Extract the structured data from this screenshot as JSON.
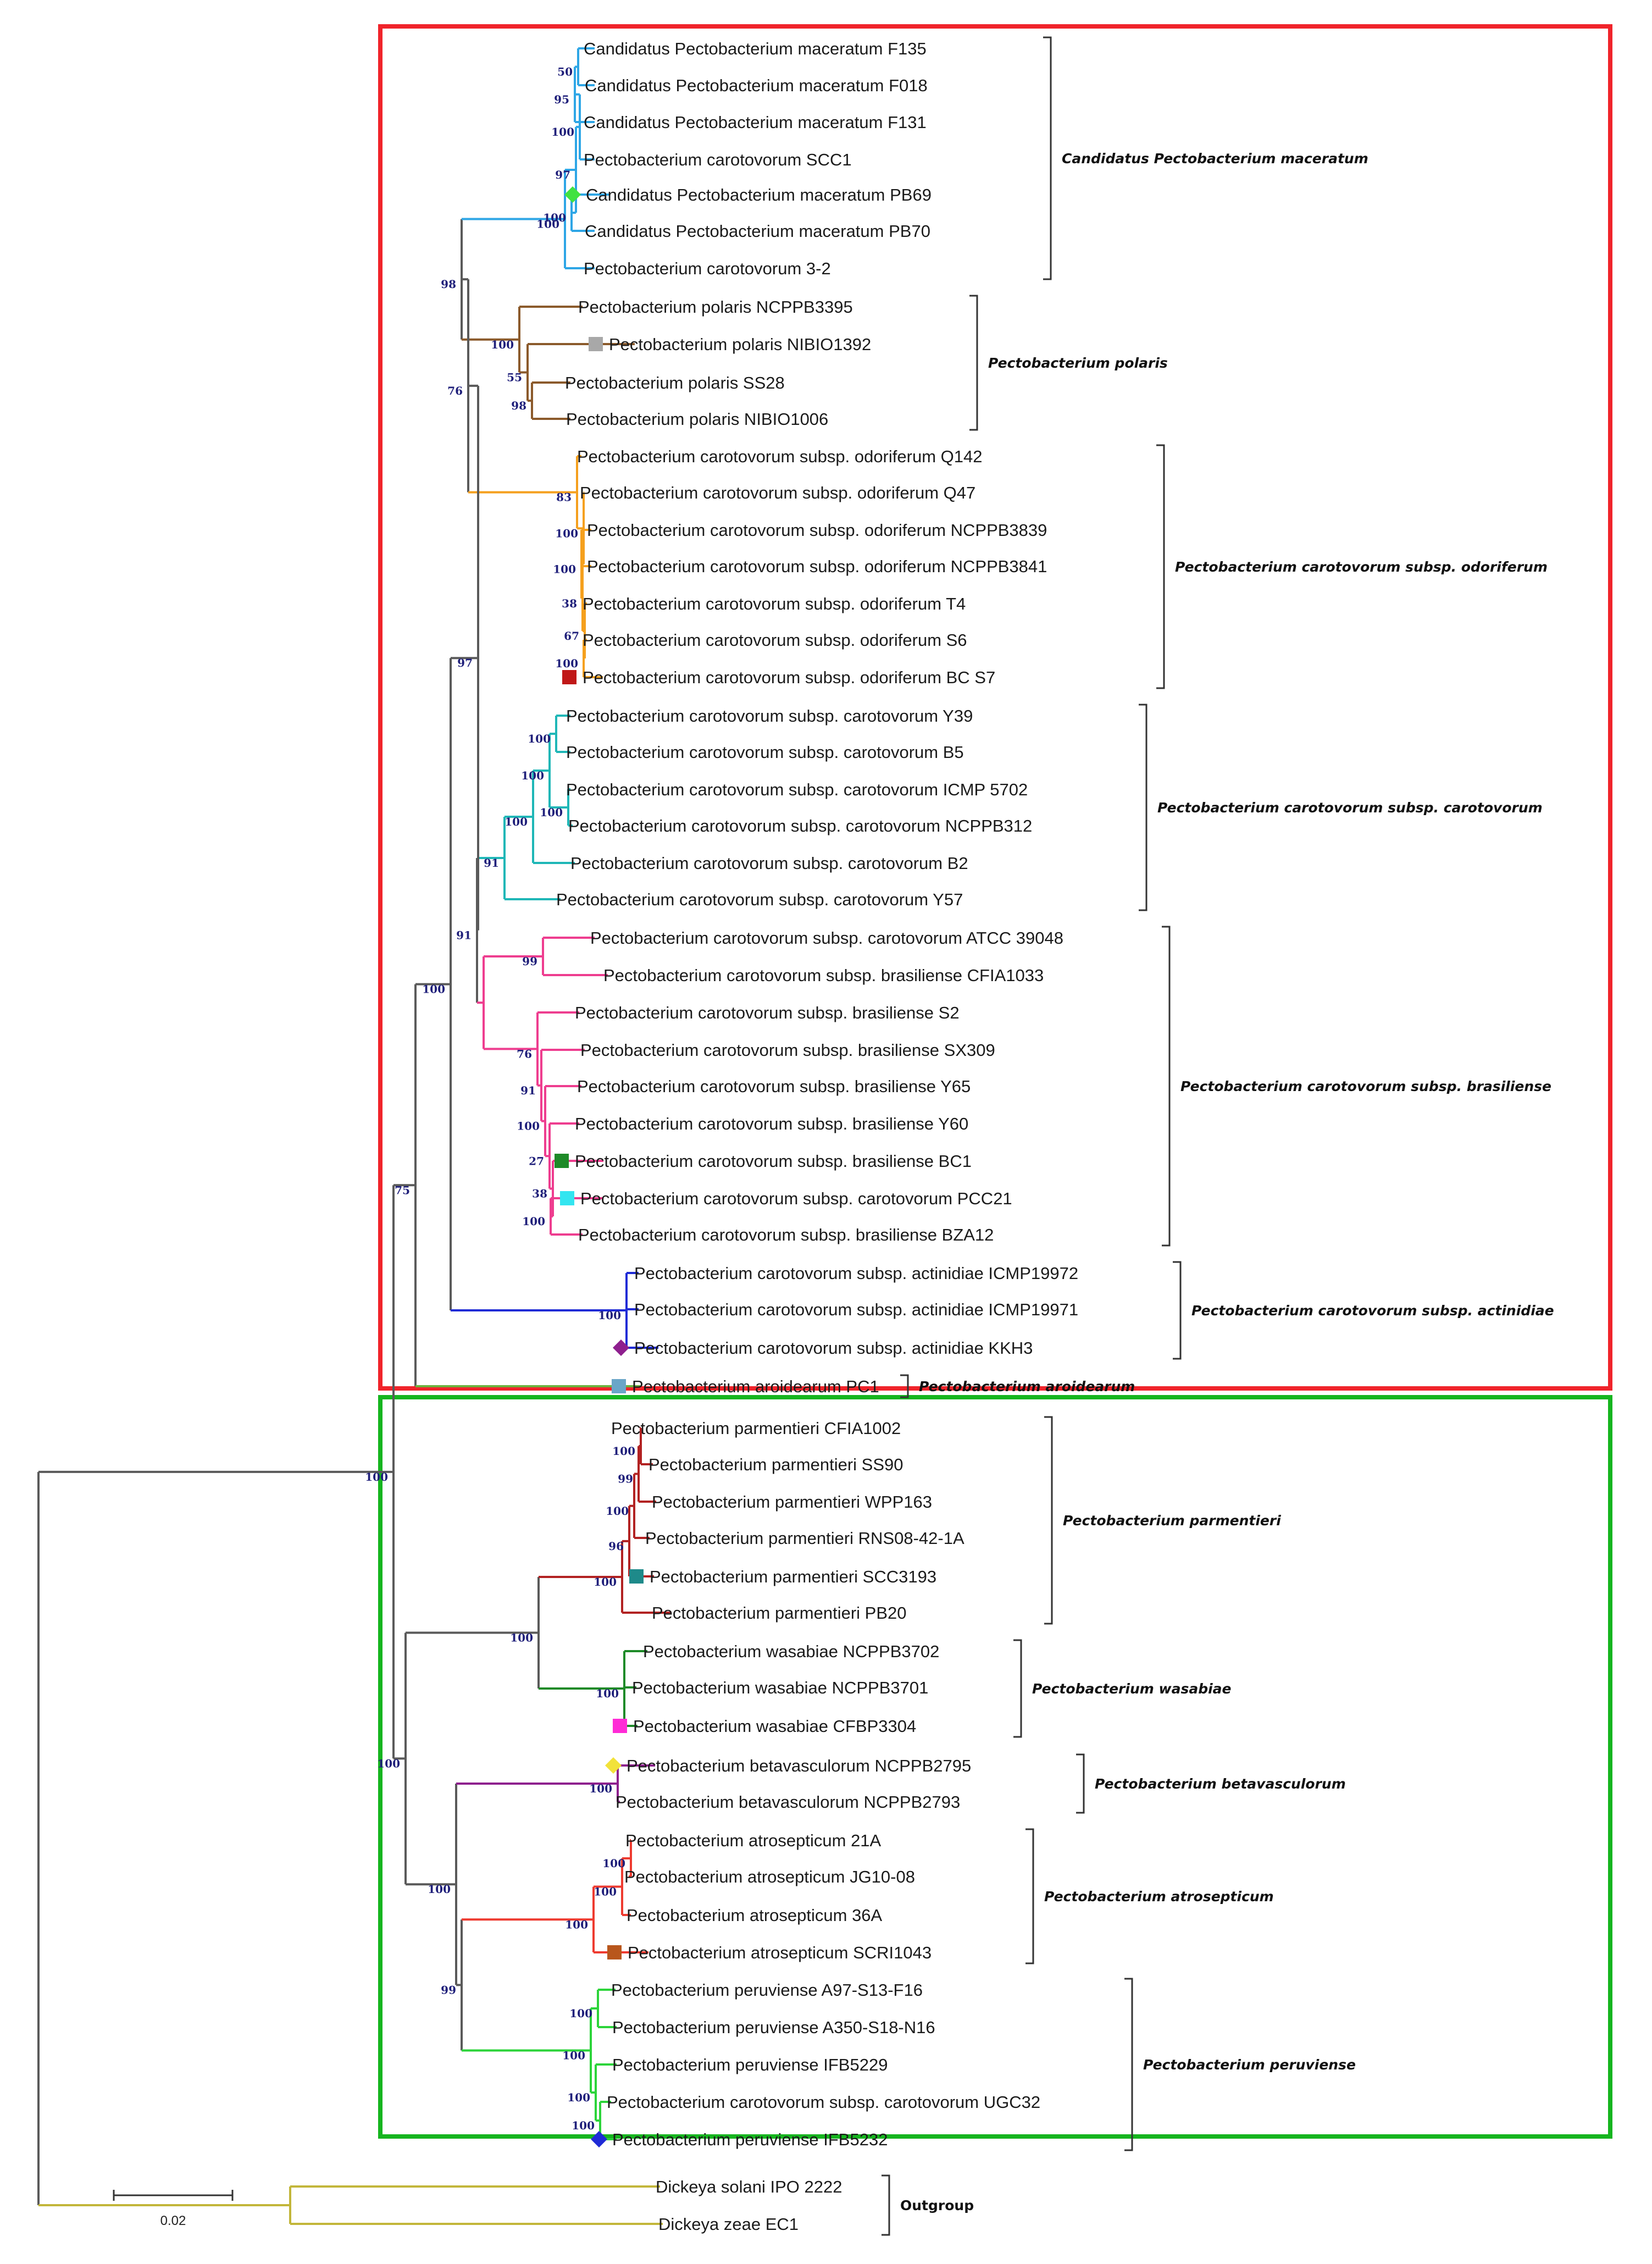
{
  "colors": {
    "red_box": "#f0242b",
    "green_box": "#16b51f",
    "bootstrap": "#1f1f7a",
    "black": "#5a5a5a"
  },
  "scale_label": "0.02",
  "clades": [
    {
      "id": "maceratum",
      "label": "Candidatus Pectobacterium maceratum",
      "color": "#2ea6e6"
    },
    {
      "id": "polaris",
      "label": "Pectobacterium polaris",
      "color": "#8b5a2b"
    },
    {
      "id": "odoriferum",
      "label": "Pectobacterium carotovorum subsp. odoriferum",
      "color": "#f5a01e"
    },
    {
      "id": "carotovorum",
      "label": "Pectobacterium carotovorum subsp. carotovorum",
      "color": "#1fb7b7"
    },
    {
      "id": "brasiliense",
      "label": "Pectobacterium carotovorum subsp. brasiliense",
      "color": "#ee3d8f"
    },
    {
      "id": "actinidiae",
      "label": "Pectobacterium carotovorum subsp. actinidiae",
      "color": "#1f2bd6"
    },
    {
      "id": "aroidearum",
      "label": "Pectobacterium aroidearum",
      "color": "#6cb33f"
    },
    {
      "id": "parmentieri",
      "label": "Pectobacterium parmentieri",
      "color": "#b22222"
    },
    {
      "id": "wasabiae",
      "label": "Pectobacterium wasabiae",
      "color": "#1e8a28"
    },
    {
      "id": "betavasculorum",
      "label": "Pectobacterium betavasculorum",
      "color": "#8e1f8e"
    },
    {
      "id": "atrosepticum",
      "label": "Pectobacterium atrosepticum",
      "color": "#ee3b30"
    },
    {
      "id": "peruviense",
      "label": "Pectobacterium peruviense",
      "color": "#2cd43a"
    },
    {
      "id": "outgroup",
      "label": "Outgroup",
      "color": "#c2b63a"
    }
  ],
  "leaves": [
    {
      "label": "Candidatus Pectobacterium maceratum F135",
      "clade": "maceratum"
    },
    {
      "label": "Candidatus Pectobacterium maceratum F018",
      "clade": "maceratum"
    },
    {
      "label": "Candidatus Pectobacterium maceratum F131",
      "clade": "maceratum"
    },
    {
      "label": "Pectobacterium carotovorum SCC1",
      "clade": "maceratum"
    },
    {
      "label": "Candidatus Pectobacterium maceratum PB69",
      "clade": "maceratum",
      "marker": {
        "shape": "diamond",
        "color": "#41e241"
      }
    },
    {
      "label": "Candidatus Pectobacterium maceratum PB70",
      "clade": "maceratum"
    },
    {
      "label": "Pectobacterium carotovorum 3-2",
      "clade": "maceratum"
    },
    {
      "label": "Pectobacterium polaris NCPPB3395",
      "clade": "polaris"
    },
    {
      "label": "Pectobacterium polaris NIBIO1392",
      "clade": "polaris",
      "marker": {
        "shape": "square",
        "color": "#a8a8a8"
      }
    },
    {
      "label": "Pectobacterium polaris SS28",
      "clade": "polaris"
    },
    {
      "label": "Pectobacterium polaris NIBIO1006",
      "clade": "polaris"
    },
    {
      "label": "Pectobacterium carotovorum subsp. odoriferum Q142",
      "clade": "odoriferum"
    },
    {
      "label": "Pectobacterium carotovorum subsp. odoriferum Q47",
      "clade": "odoriferum"
    },
    {
      "label": "Pectobacterium carotovorum subsp. odoriferum NCPPB3839",
      "clade": "odoriferum"
    },
    {
      "label": "Pectobacterium carotovorum subsp. odoriferum NCPPB3841",
      "clade": "odoriferum"
    },
    {
      "label": "Pectobacterium carotovorum subsp. odoriferum T4",
      "clade": "odoriferum"
    },
    {
      "label": "Pectobacterium carotovorum subsp. odoriferum S6",
      "clade": "odoriferum"
    },
    {
      "label": "Pectobacterium carotovorum subsp. odoriferum BC S7",
      "clade": "odoriferum",
      "marker": {
        "shape": "square",
        "color": "#c01818"
      }
    },
    {
      "label": "Pectobacterium carotovorum subsp. carotovorum Y39",
      "clade": "carotovorum"
    },
    {
      "label": "Pectobacterium carotovorum subsp. carotovorum B5",
      "clade": "carotovorum"
    },
    {
      "label": "Pectobacterium carotovorum subsp. carotovorum ICMP 5702",
      "clade": "carotovorum"
    },
    {
      "label": "Pectobacterium carotovorum subsp. carotovorum NCPPB312",
      "clade": "carotovorum"
    },
    {
      "label": "Pectobacterium carotovorum subsp. carotovorum B2",
      "clade": "carotovorum"
    },
    {
      "label": "Pectobacterium carotovorum subsp. carotovorum Y57",
      "clade": "carotovorum"
    },
    {
      "label": "Pectobacterium carotovorum subsp. carotovorum ATCC 39048",
      "clade": "brasiliense"
    },
    {
      "label": "Pectobacterium carotovorum subsp. brasiliense CFIA1033",
      "clade": "brasiliense"
    },
    {
      "label": "Pectobacterium carotovorum subsp. brasiliense S2",
      "clade": "brasiliense"
    },
    {
      "label": "Pectobacterium carotovorum subsp. brasiliense SX309",
      "clade": "brasiliense"
    },
    {
      "label": "Pectobacterium carotovorum subsp. brasiliense Y65",
      "clade": "brasiliense"
    },
    {
      "label": "Pectobacterium carotovorum subsp. brasiliense Y60",
      "clade": "brasiliense"
    },
    {
      "label": "Pectobacterium carotovorum subsp. brasiliense BC1",
      "clade": "brasiliense",
      "marker": {
        "shape": "square",
        "color": "#1e8a28"
      }
    },
    {
      "label": "Pectobacterium carotovorum subsp. carotovorum PCC21",
      "clade": "brasiliense",
      "marker": {
        "shape": "square",
        "color": "#33e5f0"
      }
    },
    {
      "label": "Pectobacterium carotovorum subsp. brasiliense BZA12",
      "clade": "brasiliense"
    },
    {
      "label": "Pectobacterium carotovorum subsp. actinidiae ICMP19972",
      "clade": "actinidiae"
    },
    {
      "label": "Pectobacterium carotovorum subsp. actinidiae ICMP19971",
      "clade": "actinidiae"
    },
    {
      "label": "Pectobacterium carotovorum subsp. actinidiae KKH3",
      "clade": "actinidiae",
      "marker": {
        "shape": "diamond",
        "color": "#8e1f8e"
      }
    },
    {
      "label": "Pectobacterium aroidearum PC1",
      "clade": "aroidearum",
      "marker": {
        "shape": "square",
        "color": "#6aa6c8"
      }
    },
    {
      "label": "Pectobacterium parmentieri CFIA1002",
      "clade": "parmentieri"
    },
    {
      "label": "Pectobacterium parmentieri SS90",
      "clade": "parmentieri"
    },
    {
      "label": "Pectobacterium parmentieri WPP163",
      "clade": "parmentieri"
    },
    {
      "label": "Pectobacterium parmentieri RNS08-42-1A",
      "clade": "parmentieri"
    },
    {
      "label": "Pectobacterium parmentieri SCC3193",
      "clade": "parmentieri",
      "marker": {
        "shape": "square",
        "color": "#1e8a8a"
      }
    },
    {
      "label": "Pectobacterium parmentieri PB20",
      "clade": "parmentieri"
    },
    {
      "label": "Pectobacterium wasabiae NCPPB3702",
      "clade": "wasabiae"
    },
    {
      "label": "Pectobacterium wasabiae NCPPB3701",
      "clade": "wasabiae"
    },
    {
      "label": "Pectobacterium wasabiae CFBP3304",
      "clade": "wasabiae",
      "marker": {
        "shape": "square",
        "color": "#ff2bd6"
      }
    },
    {
      "label": "Pectobacterium betavasculorum NCPPB2795",
      "clade": "betavasculorum",
      "marker": {
        "shape": "diamond",
        "color": "#f2e23a"
      }
    },
    {
      "label": "Pectobacterium betavasculorum NCPPB2793",
      "clade": "betavasculorum"
    },
    {
      "label": "Pectobacterium atrosepticum 21A",
      "clade": "atrosepticum"
    },
    {
      "label": "Pectobacterium atrosepticum JG10-08",
      "clade": "atrosepticum"
    },
    {
      "label": "Pectobacterium atrosepticum 36A",
      "clade": "atrosepticum"
    },
    {
      "label": "Pectobacterium atrosepticum SCRI1043",
      "clade": "atrosepticum",
      "marker": {
        "shape": "square",
        "color": "#b8561c"
      }
    },
    {
      "label": "Pectobacterium peruviense A97-S13-F16",
      "clade": "peruviense"
    },
    {
      "label": "Pectobacterium peruviense A350-S18-N16",
      "clade": "peruviense"
    },
    {
      "label": "Pectobacterium peruviense IFB5229",
      "clade": "peruviense"
    },
    {
      "label": "Pectobacterium carotovorum subsp. carotovorum UGC32",
      "clade": "peruviense"
    },
    {
      "label": "Pectobacterium peruviense IFB5232",
      "clade": "peruviense",
      "marker": {
        "shape": "diamond",
        "color": "#1f2bd6"
      }
    },
    {
      "label": "Dickeya solani IPO 2222",
      "clade": "outgroup"
    },
    {
      "label": "Dickeya zeae EC1",
      "clade": "outgroup"
    }
  ],
  "bootstrap": [
    {
      "node": "mac_root",
      "value": "100"
    },
    {
      "node": "mac_a",
      "value": "97"
    },
    {
      "node": "mac_b",
      "value": "100"
    },
    {
      "node": "mac_c",
      "value": "95"
    },
    {
      "node": "mac_d",
      "value": "50"
    },
    {
      "node": "mac_e",
      "value": "100"
    },
    {
      "node": "mp",
      "value": "98"
    },
    {
      "node": "pol_a",
      "value": "100"
    },
    {
      "node": "pol_b",
      "value": "55"
    },
    {
      "node": "pol_c",
      "value": "98"
    },
    {
      "node": "mpo",
      "value": "76"
    },
    {
      "node": "odo_a",
      "value": "83"
    },
    {
      "node": "odo_b",
      "value": "100"
    },
    {
      "node": "odo_c",
      "value": "100"
    },
    {
      "node": "odo_d",
      "value": "38"
    },
    {
      "node": "odo_e",
      "value": "67"
    },
    {
      "node": "odo_f",
      "value": "100"
    },
    {
      "node": "upper",
      "value": "97"
    },
    {
      "node": "car_a",
      "value": "100"
    },
    {
      "node": "car_b",
      "value": "100"
    },
    {
      "node": "car_c",
      "value": "100"
    },
    {
      "node": "car_d",
      "value": "100"
    },
    {
      "node": "car_e",
      "value": "91"
    },
    {
      "node": "cb",
      "value": "91"
    },
    {
      "node": "bra_a",
      "value": "99"
    },
    {
      "node": "bra_b",
      "value": "76"
    },
    {
      "node": "bra_c",
      "value": "91"
    },
    {
      "node": "bra_d",
      "value": "100"
    },
    {
      "node": "bra_e",
      "value": "27"
    },
    {
      "node": "bra_f",
      "value": "38"
    },
    {
      "node": "bra_g",
      "value": "100"
    },
    {
      "node": "ucb",
      "value": "100"
    },
    {
      "node": "act",
      "value": "100"
    },
    {
      "node": "red",
      "value": "75"
    },
    {
      "node": "par_a",
      "value": "100"
    },
    {
      "node": "par_b",
      "value": "99"
    },
    {
      "node": "par_c",
      "value": "100"
    },
    {
      "node": "par_d",
      "value": "96"
    },
    {
      "node": "par_e",
      "value": "100"
    },
    {
      "node": "pw",
      "value": "100"
    },
    {
      "node": "was",
      "value": "100"
    },
    {
      "node": "bet",
      "value": "100"
    },
    {
      "node": "atr_a",
      "value": "100"
    },
    {
      "node": "atr_b",
      "value": "100"
    },
    {
      "node": "atr_c",
      "value": "100"
    },
    {
      "node": "per_a",
      "value": "100"
    },
    {
      "node": "per_b",
      "value": "100"
    },
    {
      "node": "per_c",
      "value": "100"
    },
    {
      "node": "per_d",
      "value": "100"
    },
    {
      "node": "ap",
      "value": "99"
    },
    {
      "node": "bap",
      "value": "100"
    },
    {
      "node": "green",
      "value": "100"
    },
    {
      "node": "pecto",
      "value": "100"
    }
  ]
}
